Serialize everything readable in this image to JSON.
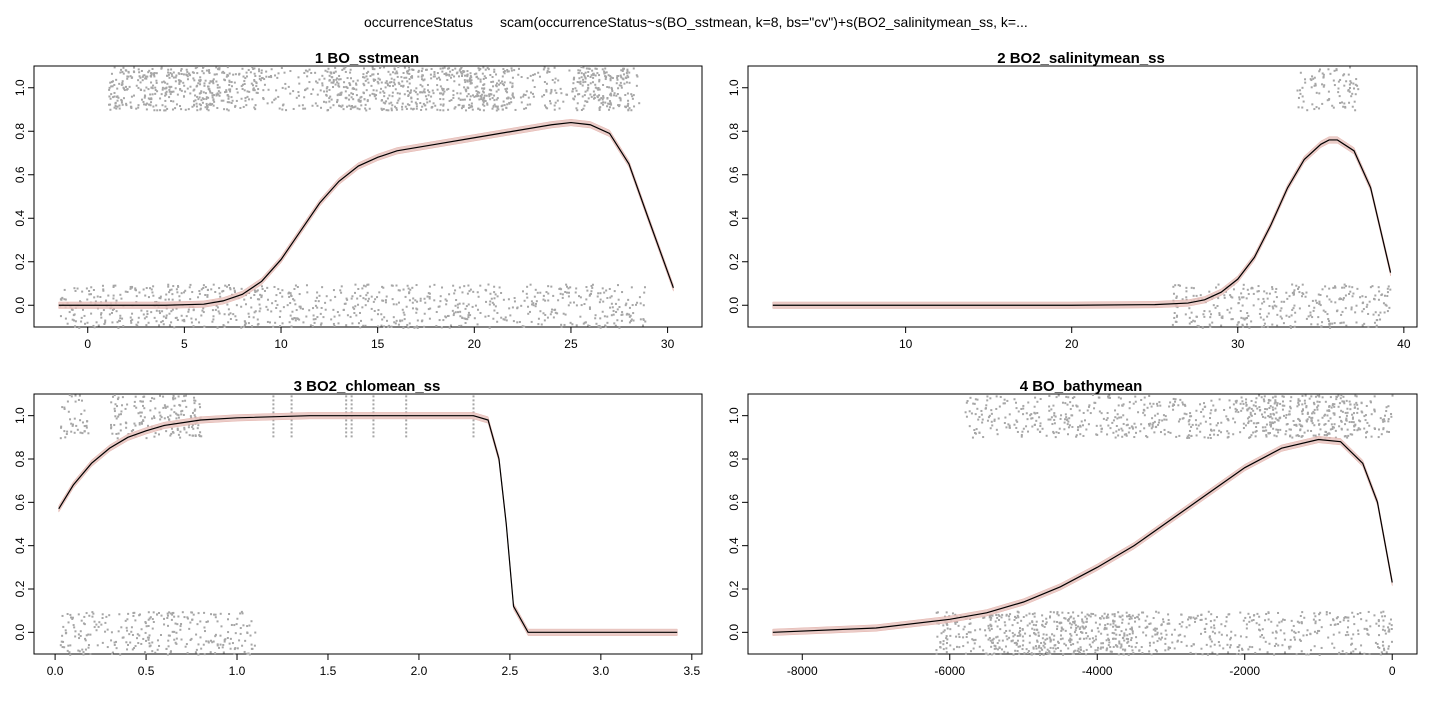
{
  "header": {
    "response": "occurrenceStatus",
    "formula": "scam(occurrenceStatus~s(BO_sstmean, k=8, bs=\"cv\")+s(BO2_salinitymean_ss, k=..."
  },
  "colors": {
    "points": "#a6a6a6",
    "curve": "#000000",
    "band": "#e8c4bf",
    "band_edge": "#e0a79f"
  },
  "chart_data": [
    {
      "type": "line",
      "title": "1  BO_sstmean",
      "xlim": [
        -1.5,
        30.5
      ],
      "ylim": [
        -0.1,
        1.1
      ],
      "xticks": [
        0,
        5,
        10,
        15,
        20,
        25,
        30
      ],
      "yticks": [
        0.0,
        0.2,
        0.4,
        0.6,
        0.8,
        1.0
      ],
      "ytick_labels": [
        "0.0",
        "0.2",
        "0.4",
        "0.6",
        "0.8",
        "1.0"
      ],
      "grid": false,
      "series": [
        {
          "x": [
            -1.5,
            2,
            4,
            6,
            7,
            8,
            9,
            10,
            11,
            12,
            13,
            14,
            15,
            16,
            18,
            20,
            22,
            24,
            25,
            26,
            27,
            28,
            29,
            30.3
          ],
          "y": [
            0.0,
            0.0,
            0.0,
            0.005,
            0.02,
            0.05,
            0.11,
            0.21,
            0.34,
            0.47,
            0.57,
            0.64,
            0.68,
            0.71,
            0.74,
            0.77,
            0.8,
            0.83,
            0.84,
            0.83,
            0.79,
            0.65,
            0.4,
            0.08
          ]
        }
      ],
      "points": {
        "top": [
          [
            8.8,
            1
          ],
          [
            28.5,
            1
          ],
          [
            12,
            18
          ],
          [
            18,
            20.5
          ],
          [
            19.5,
            22
          ],
          [
            25,
            28
          ]
        ],
        "bottom": [
          [
            -1.5,
            28.8
          ]
        ]
      }
    },
    {
      "type": "line",
      "title": "2  BO2_salinitymean_ss",
      "xlim": [
        2,
        39.3
      ],
      "ylim": [
        -0.1,
        1.1
      ],
      "xticks": [
        10,
        20,
        30,
        40
      ],
      "yticks": [
        0.0,
        0.2,
        0.4,
        0.6,
        0.8,
        1.0
      ],
      "ytick_labels": [
        "0.0",
        "0.2",
        "0.4",
        "0.6",
        "0.8",
        "1.0"
      ],
      "grid": false,
      "series": [
        {
          "x": [
            2,
            10,
            20,
            25,
            27,
            28,
            29,
            30,
            31,
            32,
            33,
            34,
            35,
            35.5,
            36,
            37,
            38,
            39.2
          ],
          "y": [
            0.0,
            0.0,
            0.0,
            0.003,
            0.01,
            0.025,
            0.06,
            0.12,
            0.22,
            0.37,
            0.54,
            0.67,
            0.74,
            0.76,
            0.76,
            0.71,
            0.54,
            0.15
          ]
        }
      ],
      "points": {
        "top": [
          [
            33.5,
            37.2
          ]
        ],
        "bottom": [
          [
            33,
            39.2
          ],
          [
            26,
            33
          ]
        ]
      }
    },
    {
      "type": "line",
      "title": "3  BO2_chlomean_ss",
      "xlim": [
        0.02,
        3.42
      ],
      "ylim": [
        -0.1,
        1.1
      ],
      "xticks": [
        0.0,
        0.5,
        1.0,
        1.5,
        2.0,
        2.5,
        3.0,
        3.5
      ],
      "xtick_labels": [
        "0.0",
        "0.5",
        "1.0",
        "1.5",
        "2.0",
        "2.5",
        "3.0",
        "3.5"
      ],
      "yticks": [
        0.0,
        0.2,
        0.4,
        0.6,
        0.8,
        1.0
      ],
      "ytick_labels": [
        "0.0",
        "0.2",
        "0.4",
        "0.6",
        "0.8",
        "1.0"
      ],
      "grid": false,
      "series": [
        {
          "x": [
            0.02,
            0.1,
            0.2,
            0.3,
            0.4,
            0.5,
            0.6,
            0.8,
            1.0,
            1.4,
            2.0,
            2.3,
            2.38,
            2.44,
            2.48,
            2.52,
            2.6,
            3.42
          ],
          "y": [
            0.57,
            0.68,
            0.78,
            0.85,
            0.9,
            0.93,
            0.955,
            0.98,
            0.99,
            1.0,
            1.0,
            1.0,
            0.98,
            0.8,
            0.5,
            0.12,
            0.0,
            0.0
          ]
        }
      ],
      "points": {
        "top": [
          [
            0.02,
            0.18
          ],
          [
            0.3,
            0.8
          ],
          [
            0.62,
            0.78
          ]
        ],
        "bottom": [
          [
            0.02,
            0.55
          ],
          [
            0.55,
            1.1
          ]
        ]
      },
      "rug_x": [
        1.2,
        1.3,
        1.6,
        1.63,
        1.75,
        1.93,
        2.3
      ]
    },
    {
      "type": "line",
      "title": "4  BO_bathymean",
      "xlim": [
        -8400,
        0
      ],
      "ylim": [
        -0.1,
        1.1
      ],
      "xticks": [
        -8000,
        -6000,
        -4000,
        -2000,
        0
      ],
      "yticks": [
        0.0,
        0.2,
        0.4,
        0.6,
        0.8,
        1.0
      ],
      "ytick_labels": [
        "0.0",
        "0.2",
        "0.4",
        "0.6",
        "0.8",
        "1.0"
      ],
      "grid": false,
      "series": [
        {
          "x": [
            -8400,
            -7000,
            -6000,
            -5500,
            -5000,
            -4500,
            -4000,
            -3500,
            -3000,
            -2500,
            -2000,
            -1500,
            -1000,
            -700,
            -400,
            -200,
            0
          ],
          "y": [
            0.0,
            0.02,
            0.06,
            0.09,
            0.14,
            0.21,
            0.3,
            0.4,
            0.52,
            0.64,
            0.76,
            0.85,
            0.89,
            0.88,
            0.78,
            0.6,
            0.23
          ]
        }
      ],
      "points": {
        "top": [
          [
            -5800,
            0
          ],
          [
            -2000,
            -500
          ]
        ],
        "bottom": [
          [
            -6200,
            0
          ],
          [
            -5500,
            -3500
          ]
        ]
      }
    }
  ]
}
